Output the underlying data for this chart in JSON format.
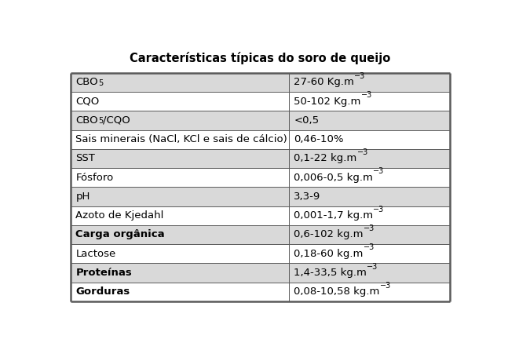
{
  "title": "Características típicas do soro de queijo",
  "col_split": 0.575,
  "rows": [
    {
      "label": "CBO",
      "label_sub": "5",
      "label_after": "",
      "value": "27-60 Kg.m",
      "value_sup": "−3",
      "bold_label": false,
      "bg": "#d9d9d9"
    },
    {
      "label": "CQO",
      "label_sub": "",
      "label_after": "",
      "value": "50-102 Kg.m",
      "value_sup": "−3",
      "bold_label": false,
      "bg": "#ffffff"
    },
    {
      "label": "CBO",
      "label_sub": "5",
      "label_after": "/CQO",
      "value": "<0,5",
      "value_sup": "",
      "bold_label": false,
      "bg": "#d9d9d9"
    },
    {
      "label": "Sais minerais (NaCl, KCl e sais de cálcio)",
      "label_sub": "",
      "label_after": "",
      "value": "0,46-10%",
      "value_sup": "",
      "bold_label": false,
      "bg": "#ffffff"
    },
    {
      "label": "SST",
      "label_sub": "",
      "label_after": "",
      "value": "0,1-22 kg.m",
      "value_sup": "−3",
      "bold_label": false,
      "bg": "#d9d9d9"
    },
    {
      "label": "Fósforo",
      "label_sub": "",
      "label_after": "",
      "value": "0,006-0,5 kg.m",
      "value_sup": "−3",
      "bold_label": false,
      "bg": "#ffffff"
    },
    {
      "label": "pH",
      "label_sub": "",
      "label_after": "",
      "value": "3,3-9",
      "value_sup": "",
      "bold_label": false,
      "bg": "#d9d9d9"
    },
    {
      "label": "Azoto de Kjedahl",
      "label_sub": "",
      "label_after": "",
      "value": "0,001-1,7 kg.m",
      "value_sup": "−3",
      "bold_label": false,
      "bg": "#ffffff"
    },
    {
      "label": "Carga orgânica",
      "label_sub": "",
      "label_after": "",
      "value": "0,6-102 kg.m",
      "value_sup": "−3",
      "bold_label": true,
      "bg": "#d9d9d9"
    },
    {
      "label": "Lactose",
      "label_sub": "",
      "label_after": "",
      "value": "0,18-60 kg.m",
      "value_sup": "−3",
      "bold_label": false,
      "bg": "#ffffff"
    },
    {
      "label": "Proteínas",
      "label_sub": "",
      "label_after": "",
      "value": "1,4-33,5 kg.m",
      "value_sup": "−3",
      "bold_label": true,
      "bg": "#d9d9d9"
    },
    {
      "label": "Gorduras",
      "label_sub": "",
      "label_after": "",
      "value": "0,08-10,58 kg.m",
      "value_sup": "−3",
      "bold_label": true,
      "bg": "#ffffff"
    }
  ],
  "title_fontsize": 10.5,
  "cell_fontsize": 9.5,
  "sub_fontsize": 7.0,
  "sup_fontsize": 7.0,
  "border_color": "#5a5a5a",
  "text_color": "#000000",
  "top_border_color": "#5a5a5a",
  "fig_width": 6.47,
  "fig_height": 4.37,
  "dpi": 100
}
